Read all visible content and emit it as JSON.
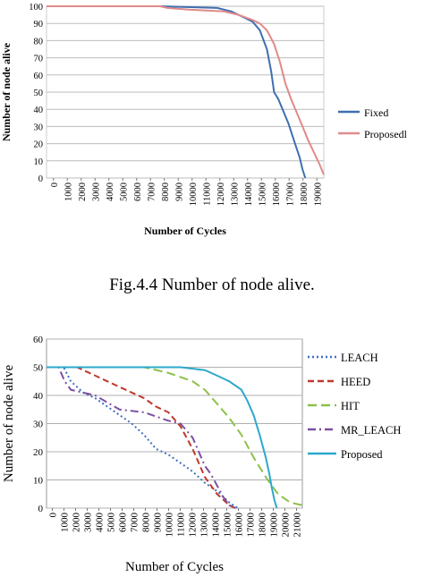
{
  "caption": "Fig.4.4 Number of node alive.",
  "chart_data": [
    {
      "type": "line",
      "title": "",
      "xlabel": "Number of Cycles",
      "ylabel": "Number of node alive",
      "xlim": [
        0,
        19500
      ],
      "ylim": [
        0,
        100
      ],
      "x_ticks": [
        "0",
        "1000",
        "2000",
        "3000",
        "4000",
        "5000",
        "6000",
        "7000",
        "8000",
        "9000",
        "10000",
        "11000",
        "12000",
        "13000",
        "14000",
        "15000",
        "16000",
        "17000",
        "18000",
        "19000"
      ],
      "y_ticks": [
        "0",
        "10",
        "20",
        "30",
        "40",
        "50",
        "60",
        "70",
        "80",
        "90",
        "100"
      ],
      "grid": "horizontal",
      "legend_position": "right",
      "colors": {
        "Fixed": "#3e6fb0",
        "Proposedl": "#e08a8a"
      },
      "series": [
        {
          "name": "Fixed",
          "points": [
            [
              0,
              100
            ],
            [
              8000,
              100
            ],
            [
              12000,
              99
            ],
            [
              13000,
              97
            ],
            [
              14000,
              93
            ],
            [
              14500,
              91
            ],
            [
              15000,
              86
            ],
            [
              15500,
              75
            ],
            [
              15800,
              62
            ],
            [
              16000,
              50
            ],
            [
              16300,
              46
            ],
            [
              16600,
              40
            ],
            [
              17000,
              32
            ],
            [
              17400,
              22
            ],
            [
              17800,
              12
            ],
            [
              18000,
              5
            ],
            [
              18200,
              0
            ]
          ]
        },
        {
          "name": "Proposedl",
          "points": [
            [
              0,
              100
            ],
            [
              8000,
              100
            ],
            [
              8500,
              99
            ],
            [
              10000,
              98
            ],
            [
              12500,
              97
            ],
            [
              13500,
              95
            ],
            [
              14500,
              92
            ],
            [
              15000,
              90
            ],
            [
              15500,
              86
            ],
            [
              16000,
              78
            ],
            [
              16400,
              68
            ],
            [
              16800,
              55
            ],
            [
              17200,
              46
            ],
            [
              17600,
              38
            ],
            [
              18000,
              30
            ],
            [
              18400,
              22
            ],
            [
              18800,
              15
            ],
            [
              19200,
              8
            ],
            [
              19500,
              2
            ]
          ]
        }
      ]
    },
    {
      "type": "line",
      "title": "",
      "xlabel": "Number of Cycles",
      "ylabel": "Number  of node alive",
      "xlim": [
        0,
        21000
      ],
      "ylim": [
        0,
        60
      ],
      "x_ticks": [
        "0",
        "1000",
        "2000",
        "3000",
        "4000",
        "5000",
        "6000",
        "7000",
        "8000",
        "9000",
        "10000",
        "11000",
        "12000",
        "13000",
        "14000",
        "15000",
        "16000",
        "17000",
        "18000",
        "19000",
        "20000",
        "21000"
      ],
      "y_ticks": [
        "0",
        "10",
        "20",
        "30",
        "40",
        "50",
        "60"
      ],
      "grid": "horizontal",
      "legend_position": "right",
      "series": [
        {
          "name": "LEACH",
          "color": "#3e6fc0",
          "dash": "dot",
          "points": [
            [
              0,
              50
            ],
            [
              1400,
              50
            ],
            [
              2000,
              45
            ],
            [
              3000,
              41
            ],
            [
              4000,
              39
            ],
            [
              5000,
              36
            ],
            [
              6000,
              33
            ],
            [
              7000,
              30
            ],
            [
              8000,
              26
            ],
            [
              9000,
              21
            ],
            [
              10000,
              19
            ],
            [
              11000,
              16
            ],
            [
              12000,
              13
            ],
            [
              13000,
              9
            ],
            [
              14000,
              6
            ],
            [
              15000,
              2
            ],
            [
              15700,
              0
            ]
          ]
        },
        {
          "name": "HEED",
          "color": "#c0392b",
          "dash": "dash",
          "points": [
            [
              0,
              50
            ],
            [
              2500,
              50
            ],
            [
              4000,
              47
            ],
            [
              5000,
              45
            ],
            [
              6000,
              43
            ],
            [
              7000,
              41
            ],
            [
              8000,
              39
            ],
            [
              9000,
              36
            ],
            [
              10000,
              34
            ],
            [
              11000,
              29
            ],
            [
              12000,
              21
            ],
            [
              13000,
              11
            ],
            [
              14000,
              5
            ],
            [
              15000,
              1
            ],
            [
              15500,
              0
            ]
          ]
        },
        {
          "name": "HIT",
          "color": "#8cc04a",
          "dash": "longdash",
          "points": [
            [
              0,
              50
            ],
            [
              8000,
              50
            ],
            [
              10000,
              48
            ],
            [
              12000,
              45
            ],
            [
              13000,
              42
            ],
            [
              14000,
              37
            ],
            [
              15000,
              32
            ],
            [
              16000,
              26
            ],
            [
              17000,
              18
            ],
            [
              18000,
              11
            ],
            [
              19000,
              5
            ],
            [
              20000,
              2
            ],
            [
              21000,
              1
            ]
          ]
        },
        {
          "name": "MR_LEACH",
          "color": "#7b4fa3",
          "dash": "dashdot",
          "points": [
            [
              0,
              50
            ],
            [
              1000,
              50
            ],
            [
              1500,
              45
            ],
            [
              2000,
              42
            ],
            [
              4000,
              40
            ],
            [
              6000,
              35
            ],
            [
              8000,
              34
            ],
            [
              10000,
              31
            ],
            [
              11000,
              30
            ],
            [
              12000,
              25
            ],
            [
              12500,
              20
            ],
            [
              13000,
              15
            ],
            [
              13500,
              12
            ],
            [
              14000,
              8
            ],
            [
              14500,
              4
            ],
            [
              15000,
              1
            ],
            [
              15500,
              0
            ]
          ]
        },
        {
          "name": "Proposed",
          "color": "#2ca8cc",
          "dash": "solid",
          "points": [
            [
              0,
              50
            ],
            [
              11000,
              50
            ],
            [
              13000,
              49
            ],
            [
              14000,
              47
            ],
            [
              15000,
              45
            ],
            [
              16000,
              42
            ],
            [
              16500,
              38
            ],
            [
              17000,
              33
            ],
            [
              17500,
              26
            ],
            [
              18000,
              18
            ],
            [
              18300,
              12
            ],
            [
              18500,
              7
            ],
            [
              18700,
              3
            ],
            [
              18900,
              0
            ]
          ]
        }
      ]
    }
  ]
}
